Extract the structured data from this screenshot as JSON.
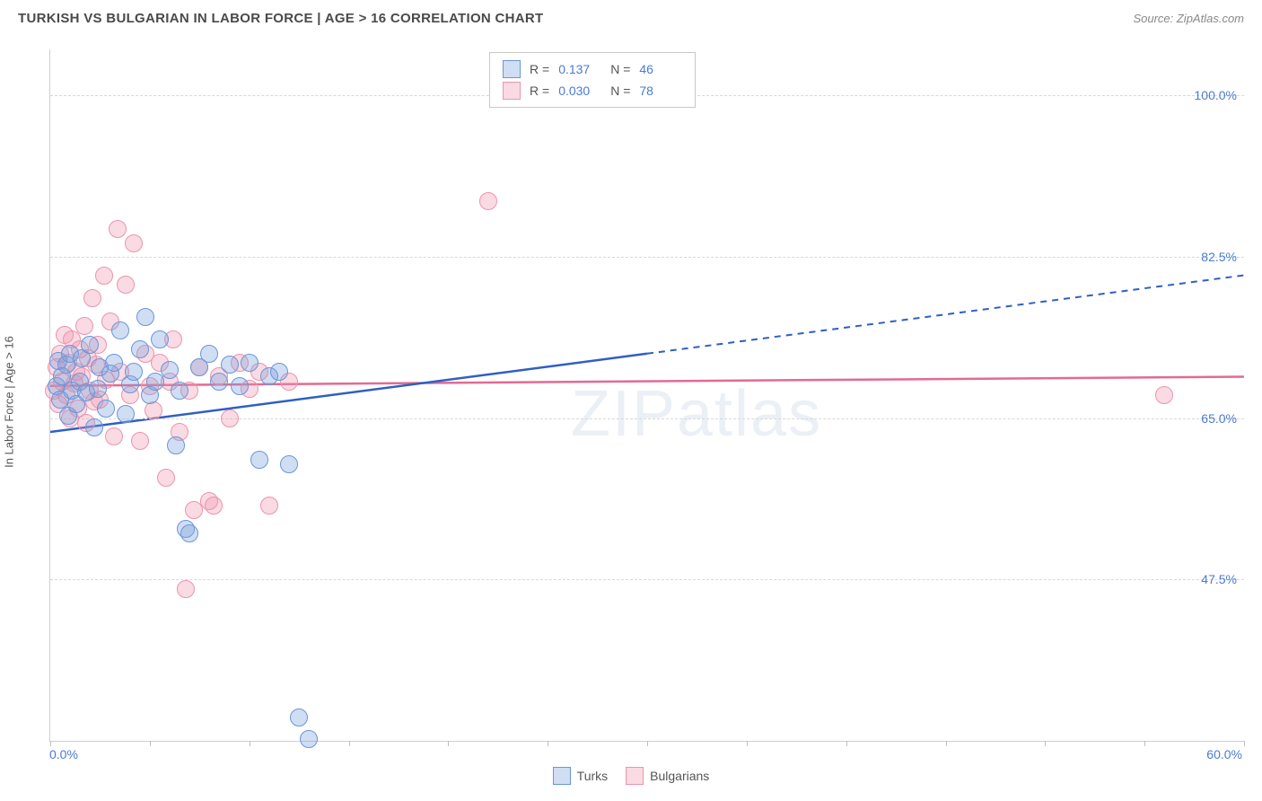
{
  "title": "TURKISH VS BULGARIAN IN LABOR FORCE | AGE > 16 CORRELATION CHART",
  "source": "Source: ZipAtlas.com",
  "watermark": "ZIPatlas",
  "y_axis_title": "In Labor Force | Age > 16",
  "chart": {
    "type": "scatter",
    "xlim": [
      0,
      60
    ],
    "ylim": [
      30,
      105
    ],
    "x_label_min": "0.0%",
    "x_label_max": "60.0%",
    "y_gridlines": [
      47.5,
      65.0,
      82.5,
      100.0
    ],
    "y_grid_labels": [
      "47.5%",
      "65.0%",
      "82.5%",
      "100.0%"
    ],
    "x_tick_positions": [
      0,
      5,
      10,
      15,
      20,
      25,
      30,
      35,
      40,
      45,
      50,
      55,
      60
    ],
    "grid_color": "#d8d8d8",
    "axis_color": "#d0d0d0",
    "label_color": "#4a7bd0",
    "background_color": "#ffffff",
    "point_radius": 9,
    "series": {
      "turks": {
        "label": "Turks",
        "fill": "rgba(120,160,220,0.35)",
        "stroke": "#6a96d8",
        "line_color": "#2f5fc4",
        "r_value": "0.137",
        "n_value": "46",
        "regression": {
          "x1": 0,
          "y1": 63.5,
          "x2": 60,
          "y2": 80.5,
          "solid_until_x": 30
        },
        "points": [
          [
            0.3,
            68.5
          ],
          [
            0.4,
            71.2
          ],
          [
            0.5,
            67.0
          ],
          [
            0.6,
            69.5
          ],
          [
            0.8,
            70.8
          ],
          [
            0.9,
            65.3
          ],
          [
            1.0,
            72.0
          ],
          [
            1.1,
            68.0
          ],
          [
            1.3,
            66.5
          ],
          [
            1.5,
            69.0
          ],
          [
            1.6,
            71.5
          ],
          [
            1.8,
            67.8
          ],
          [
            2.0,
            73.0
          ],
          [
            2.2,
            64.0
          ],
          [
            2.4,
            68.2
          ],
          [
            2.5,
            70.5
          ],
          [
            2.8,
            66.0
          ],
          [
            3.0,
            69.8
          ],
          [
            3.2,
            71.0
          ],
          [
            3.5,
            74.5
          ],
          [
            3.8,
            65.5
          ],
          [
            4.0,
            68.7
          ],
          [
            4.2,
            70.0
          ],
          [
            4.5,
            72.5
          ],
          [
            4.8,
            76.0
          ],
          [
            5.0,
            67.5
          ],
          [
            5.3,
            69.0
          ],
          [
            5.5,
            73.5
          ],
          [
            6.0,
            70.2
          ],
          [
            6.3,
            62.0
          ],
          [
            6.5,
            68.0
          ],
          [
            6.8,
            53.0
          ],
          [
            7.0,
            52.5
          ],
          [
            7.5,
            70.5
          ],
          [
            8.0,
            72.0
          ],
          [
            8.5,
            69.0
          ],
          [
            9.0,
            70.8
          ],
          [
            9.5,
            68.5
          ],
          [
            10.0,
            71.0
          ],
          [
            10.5,
            60.5
          ],
          [
            11.0,
            69.5
          ],
          [
            11.5,
            70.0
          ],
          [
            12.0,
            60.0
          ],
          [
            12.5,
            32.5
          ],
          [
            13.0,
            30.2
          ]
        ]
      },
      "bulgarians": {
        "label": "Bulgarians",
        "fill": "rgba(240,150,175,0.35)",
        "stroke": "#ec94ae",
        "line_color": "#e36a93",
        "r_value": "0.030",
        "n_value": "78",
        "regression": {
          "x1": 0,
          "y1": 68.5,
          "x2": 60,
          "y2": 69.5,
          "solid_until_x": 60
        },
        "points": [
          [
            0.2,
            68.0
          ],
          [
            0.3,
            70.5
          ],
          [
            0.4,
            66.5
          ],
          [
            0.5,
            72.0
          ],
          [
            0.6,
            69.0
          ],
          [
            0.7,
            74.0
          ],
          [
            0.8,
            67.5
          ],
          [
            0.9,
            71.0
          ],
          [
            1.0,
            65.0
          ],
          [
            1.1,
            73.5
          ],
          [
            1.2,
            68.8
          ],
          [
            1.3,
            70.0
          ],
          [
            1.4,
            66.0
          ],
          [
            1.5,
            72.5
          ],
          [
            1.6,
            69.5
          ],
          [
            1.7,
            75.0
          ],
          [
            1.8,
            64.5
          ],
          [
            1.9,
            71.5
          ],
          [
            2.0,
            68.0
          ],
          [
            2.1,
            78.0
          ],
          [
            2.2,
            66.8
          ],
          [
            2.3,
            70.8
          ],
          [
            2.4,
            73.0
          ],
          [
            2.5,
            67.0
          ],
          [
            2.7,
            80.5
          ],
          [
            2.8,
            69.2
          ],
          [
            3.0,
            75.5
          ],
          [
            3.2,
            63.0
          ],
          [
            3.4,
            85.5
          ],
          [
            3.5,
            70.0
          ],
          [
            3.8,
            79.5
          ],
          [
            4.0,
            67.5
          ],
          [
            4.2,
            84.0
          ],
          [
            4.5,
            62.5
          ],
          [
            4.8,
            72.0
          ],
          [
            5.0,
            68.5
          ],
          [
            5.2,
            65.8
          ],
          [
            5.5,
            71.0
          ],
          [
            5.8,
            58.5
          ],
          [
            6.0,
            69.0
          ],
          [
            6.2,
            73.5
          ],
          [
            6.5,
            63.5
          ],
          [
            6.8,
            46.5
          ],
          [
            7.0,
            68.0
          ],
          [
            7.2,
            55.0
          ],
          [
            7.5,
            70.5
          ],
          [
            8.0,
            56.0
          ],
          [
            8.2,
            55.5
          ],
          [
            8.5,
            69.5
          ],
          [
            9.0,
            65.0
          ],
          [
            9.5,
            71.0
          ],
          [
            10.0,
            68.2
          ],
          [
            10.5,
            70.0
          ],
          [
            11.0,
            55.5
          ],
          [
            12.0,
            69.0
          ],
          [
            22.0,
            88.5
          ],
          [
            56.0,
            67.5
          ]
        ]
      }
    }
  },
  "legend_stat_labels": {
    "r": "R =",
    "n": "N ="
  }
}
